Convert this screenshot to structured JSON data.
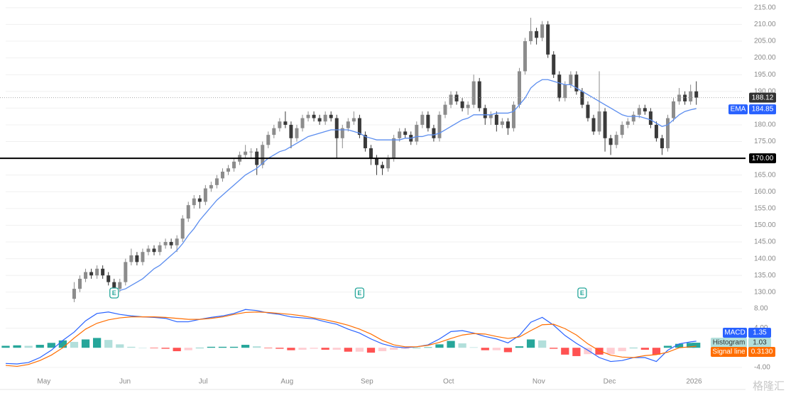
{
  "chart_data": {
    "type": "candlestick",
    "xlim": [
      -12,
      117
    ],
    "xticks": [
      {
        "value": -5.3,
        "label": "May"
      },
      {
        "value": 8.9,
        "label": "Jun"
      },
      {
        "value": 22.6,
        "label": "Jul"
      },
      {
        "value": 37.3,
        "label": "Aug"
      },
      {
        "value": 51.3,
        "label": "Sep"
      },
      {
        "value": 65.6,
        "label": "Oct"
      },
      {
        "value": 81.4,
        "label": "Nov"
      },
      {
        "value": 93.8,
        "label": "Dec"
      },
      {
        "value": 108.6,
        "label": "2026"
      }
    ],
    "ylim": [
      127.2,
      217.3
    ],
    "yticks": [
      {
        "value": 215,
        "label": "215.00"
      },
      {
        "value": 210,
        "label": "210.00"
      },
      {
        "value": 205,
        "label": "205.00"
      },
      {
        "value": 200,
        "label": "200.00"
      },
      {
        "value": 195,
        "label": "195.00"
      },
      {
        "value": 190,
        "label": "190.00"
      },
      {
        "value": 185,
        "label": "185.00"
      },
      {
        "value": 180,
        "label": "180.00"
      },
      {
        "value": 175,
        "label": "175.00"
      },
      {
        "value": 170,
        "label": "170.00"
      },
      {
        "value": 165,
        "label": "165.00"
      },
      {
        "value": 160,
        "label": "160.00"
      },
      {
        "value": 155,
        "label": "155.00"
      },
      {
        "value": 150,
        "label": "150.00"
      },
      {
        "value": 145,
        "label": "145.00"
      },
      {
        "value": 140,
        "label": "140.00"
      },
      {
        "value": 135,
        "label": "135.00"
      },
      {
        "value": 130,
        "label": "130.00"
      }
    ],
    "grid": true,
    "up_color": "#8c8c8c",
    "down_color": "#3a3a3a",
    "ohlc": [
      [
        128,
        133,
        127,
        131
      ],
      [
        131,
        135,
        130,
        134
      ],
      [
        134,
        137,
        133,
        136
      ],
      [
        136,
        137,
        134,
        135
      ],
      [
        135,
        138,
        134,
        137
      ],
      [
        137,
        138,
        134,
        135
      ],
      [
        135,
        136,
        132,
        133
      ],
      [
        133,
        134,
        130,
        131
      ],
      [
        131,
        134,
        130,
        133
      ],
      [
        133,
        140,
        132,
        139
      ],
      [
        139,
        143,
        138,
        141
      ],
      [
        141,
        142,
        138,
        139
      ],
      [
        139,
        143,
        138,
        142
      ],
      [
        142,
        144,
        141,
        143
      ],
      [
        143,
        144,
        141,
        142
      ],
      [
        142,
        145,
        141,
        144
      ],
      [
        144,
        146,
        143,
        145
      ],
      [
        145,
        146,
        143,
        144
      ],
      [
        144,
        147,
        142,
        146
      ],
      [
        146,
        153,
        145,
        152
      ],
      [
        152,
        157,
        151,
        156
      ],
      [
        156,
        159,
        155,
        158
      ],
      [
        158,
        159,
        155,
        157
      ],
      [
        157,
        162,
        156,
        161
      ],
      [
        161,
        163,
        160,
        162
      ],
      [
        162,
        165,
        161,
        164
      ],
      [
        164,
        167,
        163,
        166
      ],
      [
        166,
        168,
        165,
        167
      ],
      [
        167,
        170,
        166,
        169
      ],
      [
        169,
        172,
        168,
        171
      ],
      [
        171,
        174,
        170,
        172
      ],
      [
        172,
        173,
        170,
        172
      ],
      [
        172,
        173,
        165,
        168
      ],
      [
        168,
        175,
        167,
        174
      ],
      [
        174,
        178,
        173,
        177
      ],
      [
        177,
        180,
        176,
        179
      ],
      [
        179,
        182,
        178,
        181
      ],
      [
        181,
        184,
        179,
        180
      ],
      [
        180,
        181,
        173,
        176
      ],
      [
        176,
        180,
        175,
        179
      ],
      [
        179,
        183,
        178,
        182
      ],
      [
        182,
        184,
        181,
        183
      ],
      [
        183,
        184,
        181,
        182
      ],
      [
        182,
        183,
        180,
        181
      ],
      [
        181,
        184,
        180,
        183
      ],
      [
        183,
        184,
        181,
        182
      ],
      [
        182,
        183,
        170,
        176
      ],
      [
        176,
        180,
        173,
        179
      ],
      [
        179,
        182,
        178,
        181
      ],
      [
        181,
        184,
        180,
        182
      ],
      [
        182,
        183,
        176,
        177
      ],
      [
        177,
        178,
        172,
        173
      ],
      [
        173,
        174,
        168,
        170
      ],
      [
        170,
        171,
        165,
        168
      ],
      [
        168,
        169,
        165,
        167
      ],
      [
        167,
        171,
        166,
        170
      ],
      [
        170,
        177,
        169,
        176
      ],
      [
        176,
        179,
        175,
        178
      ],
      [
        178,
        179,
        176,
        177
      ],
      [
        177,
        178,
        174,
        175
      ],
      [
        175,
        181,
        174,
        180
      ],
      [
        180,
        184,
        179,
        183
      ],
      [
        183,
        184,
        178,
        179
      ],
      [
        179,
        180,
        175,
        176
      ],
      [
        176,
        184,
        175,
        183
      ],
      [
        183,
        187,
        182,
        186
      ],
      [
        186,
        190,
        185,
        189
      ],
      [
        189,
        190,
        186,
        187
      ],
      [
        187,
        188,
        184,
        185
      ],
      [
        185,
        187,
        183,
        186
      ],
      [
        186,
        195,
        185,
        193
      ],
      [
        193,
        194,
        184,
        185
      ],
      [
        185,
        186,
        180,
        182
      ],
      [
        182,
        184,
        180,
        183
      ],
      [
        183,
        184,
        178,
        180
      ],
      [
        180,
        182,
        179,
        181
      ],
      [
        181,
        182,
        177,
        179
      ],
      [
        179,
        187,
        178,
        186
      ],
      [
        186,
        197,
        185,
        196
      ],
      [
        196,
        206,
        195,
        205
      ],
      [
        205,
        212,
        204,
        208
      ],
      [
        208,
        209,
        204,
        206
      ],
      [
        206,
        211,
        205,
        210
      ],
      [
        210,
        211,
        200,
        201
      ],
      [
        201,
        202,
        194,
        195
      ],
      [
        195,
        196,
        187,
        188
      ],
      [
        188,
        193,
        187,
        192
      ],
      [
        192,
        196,
        191,
        195
      ],
      [
        195,
        196,
        189,
        190
      ],
      [
        190,
        191,
        185,
        186
      ],
      [
        186,
        187,
        181,
        182
      ],
      [
        182,
        183,
        177,
        178
      ],
      [
        178,
        196,
        177,
        184
      ],
      [
        184,
        185,
        172,
        176
      ],
      [
        176,
        177,
        171,
        174
      ],
      [
        174,
        178,
        173,
        177
      ],
      [
        177,
        181,
        176,
        180
      ],
      [
        180,
        182,
        179,
        181
      ],
      [
        181,
        184,
        180,
        183
      ],
      [
        183,
        186,
        182,
        185
      ],
      [
        185,
        186,
        183,
        184
      ],
      [
        184,
        185,
        179,
        180
      ],
      [
        180,
        181,
        175,
        176
      ],
      [
        176,
        177,
        171,
        173
      ],
      [
        173,
        183,
        172,
        182
      ],
      [
        182,
        188,
        181,
        187
      ],
      [
        187,
        191,
        186,
        189
      ],
      [
        189,
        190,
        186,
        187
      ],
      [
        187,
        192,
        186,
        190
      ],
      [
        190,
        193,
        186,
        188.12
      ]
    ],
    "ema": {
      "name": "EMA",
      "color": "#5b8def",
      "values": [
        null,
        null,
        null,
        null,
        null,
        null,
        null,
        null,
        130.5,
        131,
        132,
        133,
        134,
        135.5,
        137,
        138,
        139.5,
        141,
        142.5,
        144.5,
        147,
        149,
        151.5,
        153.5,
        155.5,
        157.5,
        159,
        160.5,
        162,
        163.5,
        165,
        166,
        167,
        168.5,
        170,
        171,
        172,
        172.5,
        173.5,
        174.5,
        175.5,
        176.5,
        177,
        177.5,
        178,
        178.5,
        178.5,
        178.5,
        178.5,
        178,
        177.5,
        176.5,
        176,
        175.5,
        175.5,
        175.5,
        175.5,
        175.5,
        176,
        176,
        176.5,
        176.5,
        177,
        177,
        177.5,
        178.5,
        179.5,
        180.5,
        181.5,
        182,
        183,
        183,
        183,
        183,
        183.5,
        183.5,
        183.5,
        184,
        186,
        188,
        191,
        192.5,
        193.5,
        193.5,
        193,
        192.5,
        192,
        192,
        191,
        190,
        189,
        188,
        187,
        186,
        185,
        184,
        183,
        182.5,
        182.5,
        182.5,
        182,
        181.5,
        180.5,
        179.5,
        180,
        181.5,
        183,
        184,
        184.5,
        184.85
      ]
    },
    "price_line": {
      "value": 170,
      "label": "170.00"
    },
    "events": [
      {
        "x": 7,
        "label": "E"
      },
      {
        "x": 50,
        "label": "E"
      },
      {
        "x": 89,
        "label": "E"
      }
    ],
    "indicator": {
      "type": "line",
      "x": [
        -12,
        -10,
        -8,
        -6,
        -4,
        -2,
        0,
        2,
        4,
        6,
        8,
        10,
        12,
        14,
        16,
        18,
        20,
        22,
        24,
        26,
        28,
        30,
        32,
        34,
        36,
        38,
        40,
        42,
        44,
        46,
        48,
        50,
        52,
        54,
        56,
        58,
        60,
        62,
        64,
        66,
        68,
        70,
        72,
        74,
        76,
        78,
        80,
        82,
        84,
        86,
        88,
        90,
        92,
        94,
        96,
        98,
        100,
        102,
        104,
        106,
        108,
        109
      ],
      "ylim": [
        -5.76,
        9.0
      ],
      "yticks": [
        {
          "value": 8,
          "label": "8.00"
        },
        {
          "value": 4,
          "label": "4.00"
        },
        {
          "value": -4,
          "label": "-4.00"
        }
      ],
      "series": [
        {
          "name": "MACD",
          "color": "#2962ff",
          "values": [
            -3.2,
            -3.3,
            -3.0,
            -2.0,
            -0.5,
            1.5,
            3.2,
            5.5,
            7.0,
            7.3,
            6.8,
            6.5,
            6.3,
            6.2,
            6.0,
            5.3,
            5.3,
            5.8,
            6.2,
            6.5,
            7.0,
            7.8,
            7.6,
            7.1,
            6.8,
            6.3,
            6.1,
            5.9,
            5.3,
            4.8,
            3.8,
            3.0,
            1.8,
            0.8,
            0.2,
            0.0,
            0.2,
            0.6,
            1.8,
            3.3,
            3.5,
            3.0,
            2.3,
            1.8,
            1.0,
            2.5,
            5.2,
            6.2,
            4.6,
            2.5,
            0.9,
            -0.5,
            -2.0,
            -2.8,
            -2.6,
            -2.0,
            -2.0,
            -2.8,
            -0.5,
            0.8,
            1.2,
            1.35
          ]
        },
        {
          "name": "Signal line",
          "color": "#ff6d00",
          "last_label": "0.3130",
          "values": [
            -3.6,
            -3.8,
            -3.4,
            -2.6,
            -1.5,
            0.0,
            2.0,
            3.8,
            5.0,
            5.7,
            6.1,
            6.3,
            6.3,
            6.3,
            6.2,
            6.0,
            5.8,
            5.8,
            6.0,
            6.3,
            6.8,
            7.2,
            7.3,
            7.2,
            7.0,
            6.8,
            6.5,
            6.1,
            5.7,
            5.2,
            4.6,
            3.8,
            2.8,
            1.5,
            0.6,
            0.2,
            0.2,
            0.5,
            1.1,
            1.9,
            2.6,
            2.9,
            2.8,
            2.3,
            1.9,
            2.2,
            3.5,
            4.7,
            4.8,
            3.9,
            2.6,
            0.8,
            -0.6,
            -1.5,
            -1.9,
            -2.0,
            -1.6,
            -1.4,
            -0.9,
            0.0,
            0.2,
            0.313
          ]
        }
      ],
      "histogram": {
        "name": "Histogram",
        "label_color": "#b2dfdb",
        "up_colors": [
          "#26a69a",
          "#b2dfdb"
        ],
        "down_colors": [
          "#ff5252",
          "#ffcdd2"
        ],
        "values": [
          0.4,
          0.5,
          0.4,
          0.6,
          1.0,
          1.5,
          1.2,
          1.7,
          2.0,
          1.6,
          0.7,
          0.2,
          0.0,
          -0.1,
          -0.2,
          -0.7,
          -0.5,
          0.0,
          0.2,
          0.2,
          0.2,
          0.6,
          0.3,
          -0.1,
          -0.2,
          -0.5,
          -0.4,
          -0.2,
          -0.4,
          -0.4,
          -0.8,
          -0.8,
          -1.0,
          -0.7,
          -0.4,
          -0.2,
          0.0,
          0.1,
          0.7,
          1.4,
          0.9,
          0.1,
          -0.5,
          -0.5,
          -0.9,
          0.3,
          1.7,
          1.5,
          -0.2,
          -1.4,
          -1.7,
          -1.3,
          -1.4,
          -1.3,
          -0.7,
          0.0,
          -0.4,
          -1.4,
          0.4,
          0.8,
          1.0,
          1.03
        ]
      }
    },
    "watermark": "格隆汇"
  }
}
